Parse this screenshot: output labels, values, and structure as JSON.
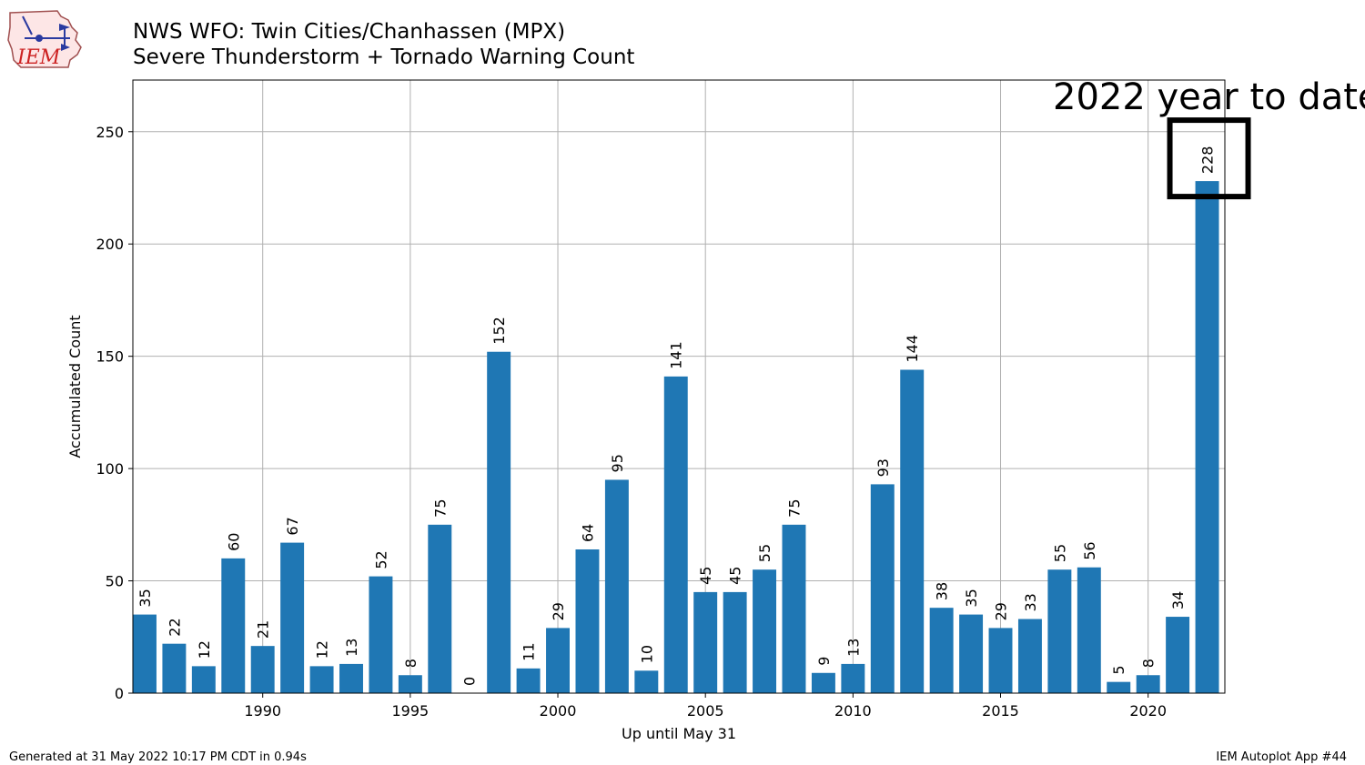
{
  "header": {
    "title": "NWS WFO: Twin Cities/Chanhassen (MPX)",
    "subtitle": "Severe Thunderstorm + Tornado Warning Count"
  },
  "logo": {
    "text": "IEM",
    "color": "#cc2222"
  },
  "footer": {
    "left": "Generated at 31 May 2022 10:17 PM CDT in 0.94s",
    "right": "IEM Autoplot App #44"
  },
  "annotation": {
    "text": "2022 year to date",
    "highlight_year": 2022
  },
  "chart_data": {
    "type": "bar",
    "title": "NWS WFO: Twin Cities/Chanhassen (MPX)",
    "subtitle": "Severe Thunderstorm + Tornado Warning Count",
    "xlabel": "Up until May 31",
    "ylabel": "Accumulated Count",
    "x": [
      1986,
      1987,
      1988,
      1989,
      1990,
      1991,
      1992,
      1993,
      1994,
      1995,
      1996,
      1997,
      1998,
      1999,
      2000,
      2001,
      2002,
      2003,
      2004,
      2005,
      2006,
      2007,
      2008,
      2009,
      2010,
      2011,
      2012,
      2013,
      2014,
      2015,
      2016,
      2017,
      2018,
      2019,
      2020,
      2021,
      2022
    ],
    "values": [
      35,
      22,
      12,
      60,
      21,
      67,
      12,
      13,
      52,
      8,
      75,
      0,
      152,
      11,
      29,
      64,
      95,
      10,
      141,
      45,
      45,
      55,
      75,
      9,
      13,
      93,
      144,
      38,
      35,
      29,
      33,
      55,
      56,
      5,
      8,
      34,
      228
    ],
    "xticks": [
      1990,
      1995,
      2000,
      2005,
      2010,
      2015,
      2020
    ],
    "yticks": [
      0,
      50,
      100,
      150,
      200,
      250
    ],
    "xlim": [
      1985.6,
      2022.6
    ],
    "ylim": [
      0,
      273
    ],
    "grid": true,
    "bar_color": "#1f77b4"
  }
}
